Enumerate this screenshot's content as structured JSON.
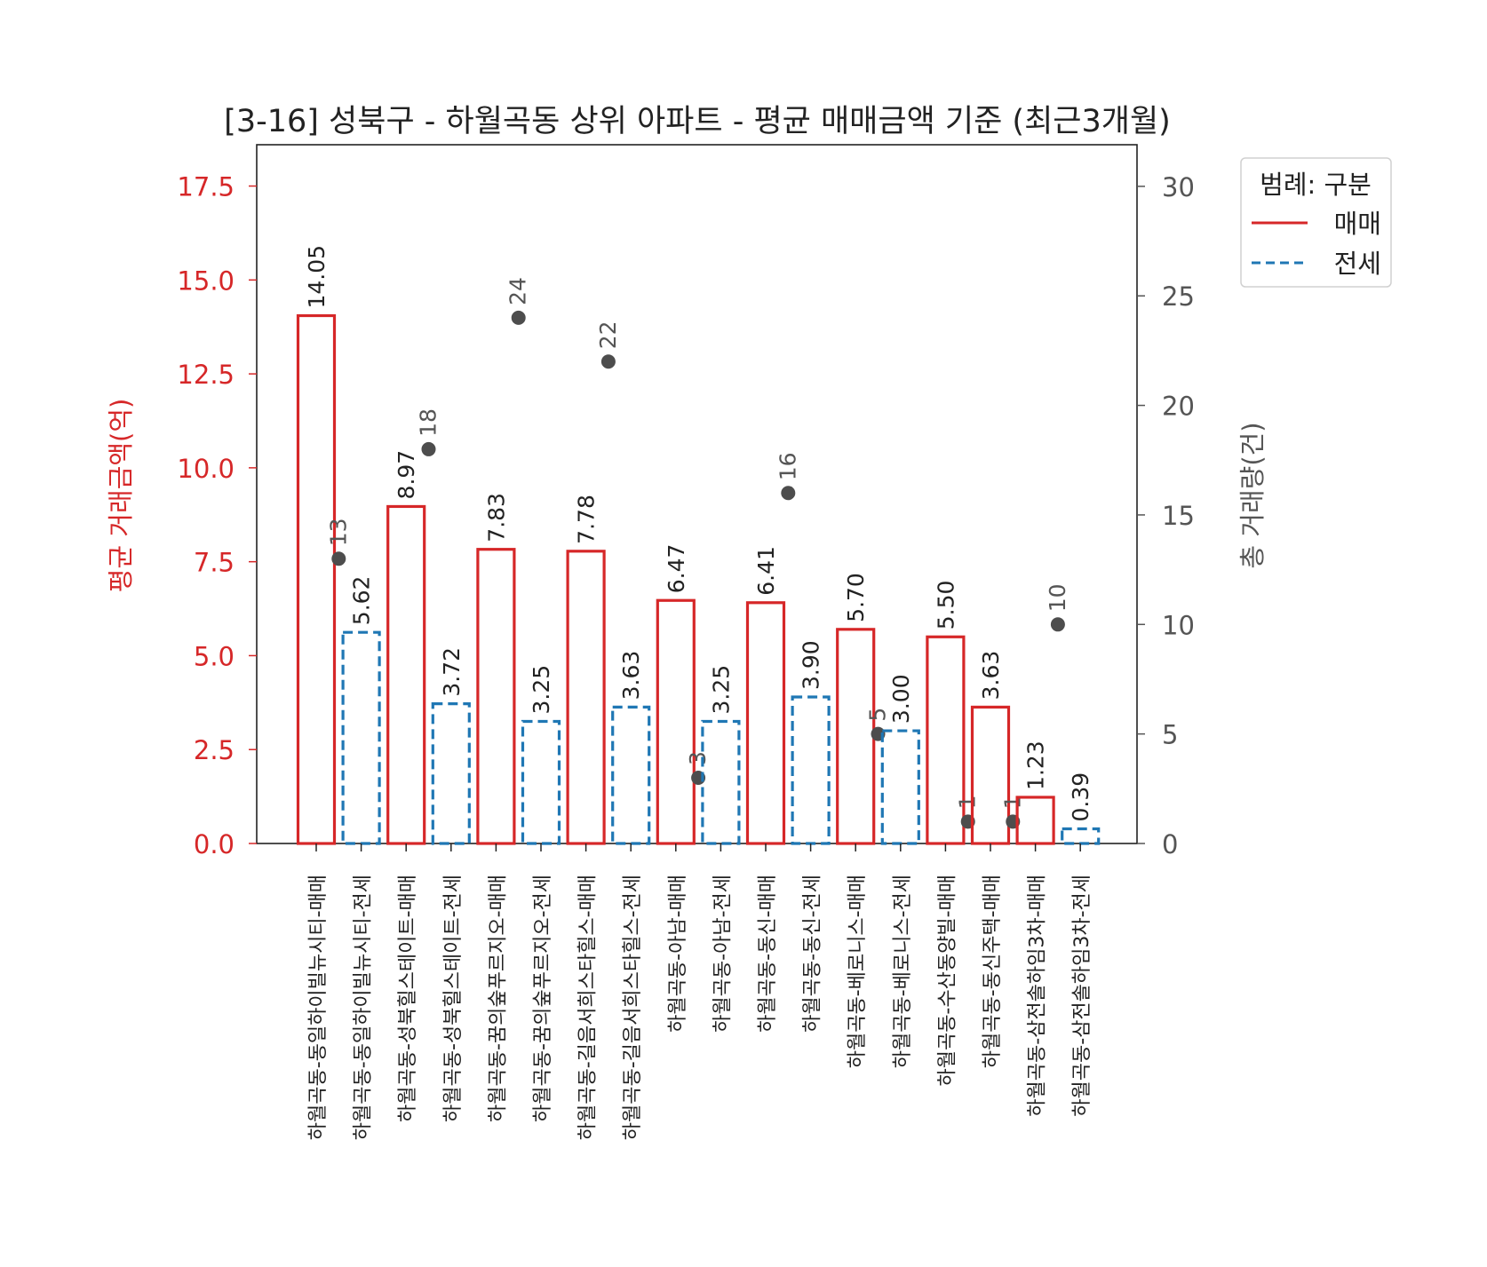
{
  "chart_data": {
    "type": "bar",
    "title": "[3-16] 성북구 - 하월곡동 상위 아파트 - 평균 매매금액 기준 (최근3개월)",
    "ylabel_left": "평균 거래금액(억)",
    "ylabel_right": "총 거래량(건)",
    "ylim_left": [
      0,
      18.6
    ],
    "ylim_right": [
      0,
      31.9
    ],
    "yticks_left": [
      "0.0",
      "2.5",
      "5.0",
      "7.5",
      "10.0",
      "12.5",
      "15.0",
      "17.5"
    ],
    "yticks_right": [
      "0",
      "5",
      "10",
      "15",
      "20",
      "25",
      "30"
    ],
    "grid": false,
    "legend": {
      "title": "범례: 구분",
      "placement": "upper-right-outside",
      "entries": [
        {
          "label": "매매",
          "color": "#d62728",
          "style": "solid"
        },
        {
          "label": "전세",
          "color": "#1f77b4",
          "style": "dashed"
        }
      ]
    },
    "colors": {
      "매매": "#d62728",
      "전세": "#1f77b4",
      "volume_marker": "#4d4d4d",
      "left_axis": "#d62728",
      "right_axis": "#555555"
    },
    "bars": [
      {
        "category": "하월곡동-동일하이빌뉴시티-매매",
        "kind": "매매",
        "value": 14.05,
        "label": "14.05",
        "volume": 13
      },
      {
        "category": "하월곡동-동일하이빌뉴시티-전세",
        "kind": "전세",
        "value": 5.62,
        "label": "5.62"
      },
      {
        "category": "하월곡동-성북힐스테이트-매매",
        "kind": "매매",
        "value": 8.97,
        "label": "8.97",
        "volume": 18
      },
      {
        "category": "하월곡동-성북힐스테이트-전세",
        "kind": "전세",
        "value": 3.72,
        "label": "3.72"
      },
      {
        "category": "하월곡동-꿈의숲푸르지오-매매",
        "kind": "매매",
        "value": 7.83,
        "label": "7.83",
        "volume": 24
      },
      {
        "category": "하월곡동-꿈의숲푸르지오-전세",
        "kind": "전세",
        "value": 3.25,
        "label": "3.25"
      },
      {
        "category": "하월곡동-길음서희스타힐스-매매",
        "kind": "매매",
        "value": 7.78,
        "label": "7.78",
        "volume": 22
      },
      {
        "category": "하월곡동-길음서희스타힐스-전세",
        "kind": "전세",
        "value": 3.63,
        "label": "3.63"
      },
      {
        "category": "하월곡동-아남-매매",
        "kind": "매매",
        "value": 6.47,
        "label": "6.47",
        "volume": 3
      },
      {
        "category": "하월곡동-아남-전세",
        "kind": "전세",
        "value": 3.25,
        "label": "3.25"
      },
      {
        "category": "하월곡동-동신-매매",
        "kind": "매매",
        "value": 6.41,
        "label": "6.41",
        "volume": 16
      },
      {
        "category": "하월곡동-동신-전세",
        "kind": "전세",
        "value": 3.9,
        "label": "3.90"
      },
      {
        "category": "하월곡동-베로니스-매매",
        "kind": "매매",
        "value": 5.7,
        "label": "5.70",
        "volume": 5
      },
      {
        "category": "하월곡동-베로니스-전세",
        "kind": "전세",
        "value": 3.0,
        "label": "3.00"
      },
      {
        "category": "하월곡동-수산동양빌-매매",
        "kind": "매매",
        "value": 5.5,
        "label": "5.50",
        "volume": 1
      },
      {
        "category": "하월곡동-동신주택-매매",
        "kind": "매매",
        "value": 3.63,
        "label": "3.63",
        "volume": 1
      },
      {
        "category": "하월곡동-삼전솔하임3차-매매",
        "kind": "매매",
        "value": 1.23,
        "label": "1.23",
        "volume": 10
      },
      {
        "category": "하월곡동-삼전솔하임3차-전세",
        "kind": "전세",
        "value": 0.39,
        "label": "0.39"
      }
    ]
  }
}
